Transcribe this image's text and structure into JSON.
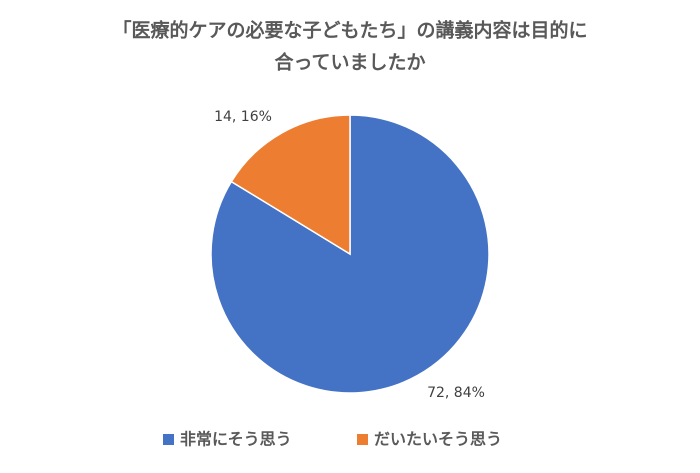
{
  "chart_data": {
    "type": "pie",
    "title": [
      "「医療的ケアの必要な子どもたち」の講義内容は目的に",
      "合っていましたか"
    ],
    "categories": [
      "非常にそう思う",
      "だいたいそう思う"
    ],
    "values": [
      72,
      14
    ],
    "value_labels": [
      "72, 84%",
      "14, 16%"
    ],
    "colors": [
      "#4472c4",
      "#ed7d31"
    ],
    "legend": "bottom"
  }
}
